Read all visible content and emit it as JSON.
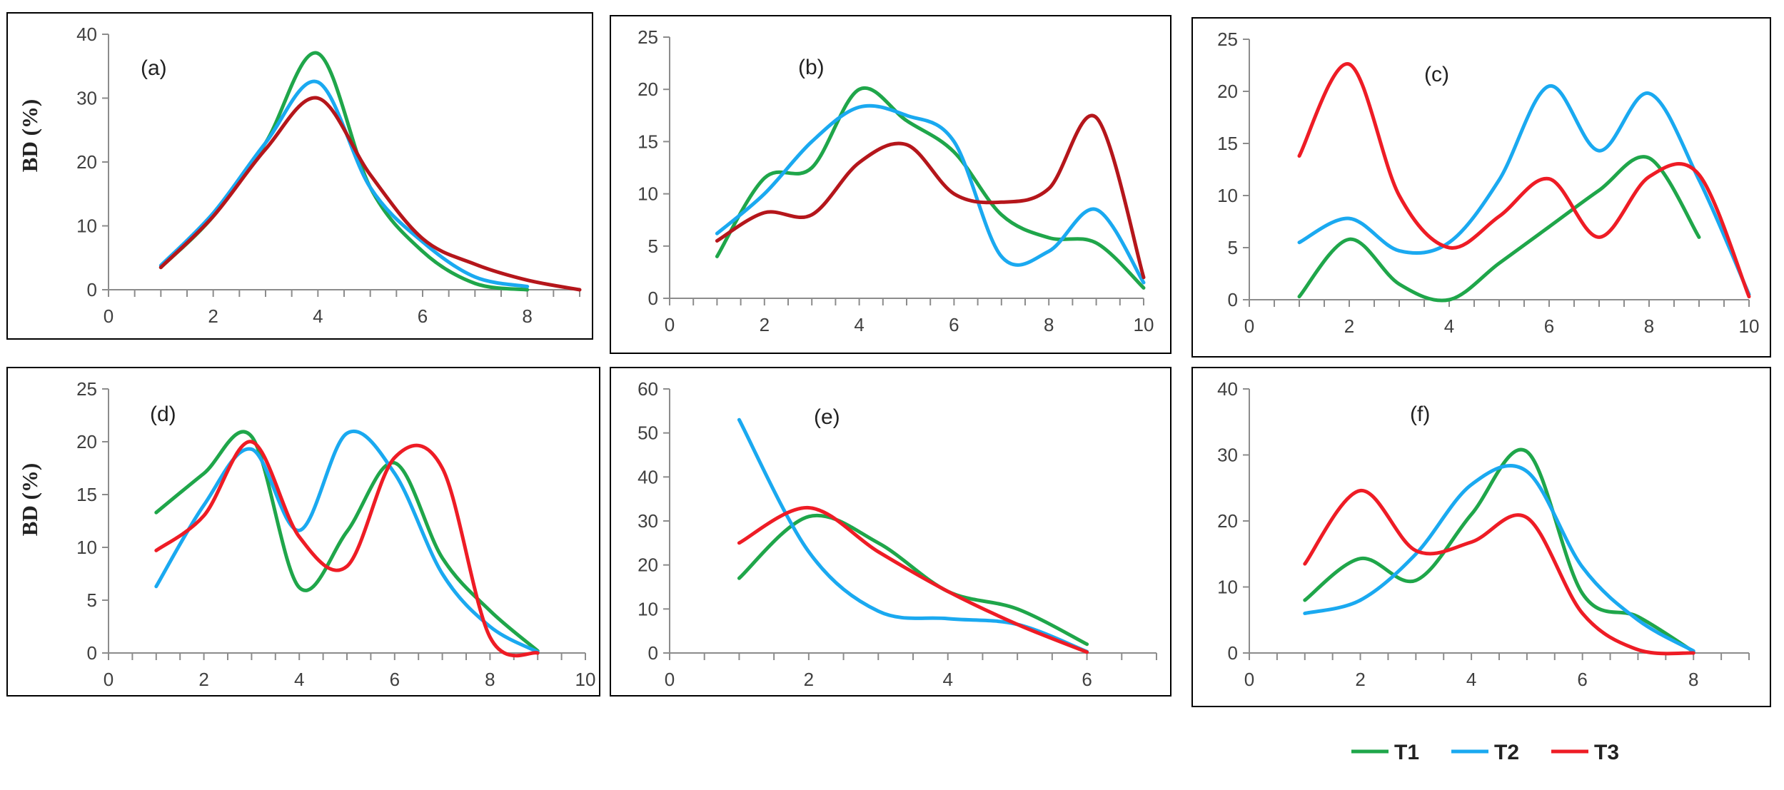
{
  "ylabel": "BD (%)",
  "legend": [
    {
      "name": "T1",
      "color": "#1fa64a"
    },
    {
      "name": "T2",
      "color": "#1aa9f0"
    },
    {
      "name": "T3",
      "color": "#ee1c25"
    }
  ],
  "chart_data": [
    {
      "type": "line",
      "label": "(a)",
      "xlim": [
        0,
        9
      ],
      "xticks": [
        0,
        2,
        4,
        6,
        8
      ],
      "ylim": [
        0,
        40
      ],
      "yticks": [
        0,
        10,
        20,
        30,
        40
      ],
      "series": [
        {
          "name": "T1",
          "color": "#1fa64a",
          "x": [
            1,
            2,
            3,
            4,
            5,
            6,
            7,
            8
          ],
          "y": [
            3.5,
            11.5,
            23,
            37,
            16,
            6,
            1,
            0
          ]
        },
        {
          "name": "T2",
          "color": "#1aa9f0",
          "x": [
            1,
            2,
            3,
            4,
            5,
            6,
            7,
            8
          ],
          "y": [
            3.8,
            12,
            23,
            32.5,
            16,
            7.5,
            2,
            0.5
          ]
        },
        {
          "name": "T3",
          "color": "#b5161b",
          "x": [
            1,
            2,
            3,
            4,
            5,
            6,
            7,
            8,
            9
          ],
          "y": [
            3.5,
            11.5,
            22,
            30,
            18,
            8,
            4,
            1.5,
            0
          ]
        }
      ]
    },
    {
      "type": "line",
      "label": "(b)",
      "xlim": [
        0,
        10
      ],
      "xticks": [
        0,
        2,
        4,
        6,
        8,
        10
      ],
      "ylim": [
        0,
        25
      ],
      "yticks": [
        0,
        5,
        10,
        15,
        20,
        25
      ],
      "series": [
        {
          "name": "T1",
          "color": "#1fa64a",
          "x": [
            1,
            2,
            3,
            4,
            5,
            6,
            7,
            8,
            9,
            10
          ],
          "y": [
            4,
            11.5,
            12.5,
            20,
            17,
            14,
            8,
            5.8,
            5.3,
            1
          ]
        },
        {
          "name": "T2",
          "color": "#1aa9f0",
          "x": [
            1,
            2,
            3,
            4,
            5,
            6,
            7,
            8,
            9,
            10
          ],
          "y": [
            6.2,
            10,
            15,
            18.3,
            17.5,
            15,
            4,
            4.5,
            8.5,
            1.5
          ]
        },
        {
          "name": "T3",
          "color": "#b5161b",
          "x": [
            1,
            2,
            3,
            4,
            5,
            6,
            7,
            8,
            9,
            10
          ],
          "y": [
            5.5,
            8.2,
            8,
            13,
            14.7,
            10,
            9.2,
            10.5,
            17.3,
            2
          ]
        }
      ]
    },
    {
      "type": "line",
      "label": "(c)",
      "xlim": [
        0,
        10
      ],
      "xticks": [
        0,
        2,
        4,
        6,
        8,
        10
      ],
      "ylim": [
        0,
        25
      ],
      "yticks": [
        0,
        5,
        10,
        15,
        20,
        25
      ],
      "series": [
        {
          "name": "T1",
          "color": "#1fa64a",
          "x": [
            1,
            2,
            3,
            4,
            5,
            6,
            7,
            8,
            9
          ],
          "y": [
            0.3,
            5.8,
            1.5,
            0,
            3.5,
            7,
            10.5,
            13.6,
            6
          ]
        },
        {
          "name": "T2",
          "color": "#1aa9f0",
          "x": [
            1,
            2,
            3,
            4,
            5,
            6,
            7,
            8,
            9,
            10
          ],
          "y": [
            5.5,
            7.8,
            4.7,
            5.5,
            11.5,
            20.5,
            14.3,
            19.8,
            11.5,
            0.5
          ]
        },
        {
          "name": "T3",
          "color": "#ee1c25",
          "x": [
            1,
            2,
            3,
            4,
            5,
            6,
            7,
            8,
            9,
            10
          ],
          "y": [
            13.8,
            22.6,
            10,
            5,
            8,
            11.6,
            6,
            11.8,
            12,
            0.3
          ]
        }
      ]
    },
    {
      "type": "line",
      "label": "(d)",
      "xlim": [
        0,
        10
      ],
      "xticks": [
        0,
        2,
        4,
        6,
        8,
        10
      ],
      "ylim": [
        0,
        25
      ],
      "yticks": [
        0,
        5,
        10,
        15,
        20,
        25
      ],
      "series": [
        {
          "name": "T1",
          "color": "#1fa64a",
          "x": [
            1,
            2,
            3,
            4,
            5,
            6,
            7,
            8,
            9
          ],
          "y": [
            13.3,
            17,
            20.5,
            6.2,
            11.5,
            18,
            9,
            4,
            0.2
          ]
        },
        {
          "name": "T2",
          "color": "#1aa9f0",
          "x": [
            1,
            2,
            3,
            4,
            5,
            6,
            7,
            8,
            9
          ],
          "y": [
            6.3,
            14,
            19.3,
            11.6,
            20.8,
            17,
            7.5,
            2.5,
            0.1
          ]
        },
        {
          "name": "T3",
          "color": "#ee1c25",
          "x": [
            1,
            2,
            3,
            4,
            5,
            6,
            7,
            8,
            9
          ],
          "y": [
            9.7,
            13,
            20,
            11,
            8.2,
            18.5,
            17.5,
            1.5,
            0
          ]
        }
      ]
    },
    {
      "type": "line",
      "label": "(e)",
      "xlim": [
        0,
        7
      ],
      "xticks": [
        0,
        2,
        4,
        6
      ],
      "ylim": [
        0,
        60
      ],
      "yticks": [
        0,
        10,
        20,
        30,
        40,
        50,
        60
      ],
      "series": [
        {
          "name": "T1",
          "color": "#1fa64a",
          "x": [
            1,
            2,
            3,
            4,
            5,
            6
          ],
          "y": [
            17,
            31,
            25,
            14,
            10,
            2
          ]
        },
        {
          "name": "T2",
          "color": "#1aa9f0",
          "x": [
            1,
            2,
            3,
            4,
            5,
            6
          ],
          "y": [
            53,
            23,
            9.5,
            7.8,
            6.5,
            0.3
          ]
        },
        {
          "name": "T3",
          "color": "#ee1c25",
          "x": [
            1,
            2,
            3,
            4,
            5,
            6
          ],
          "y": [
            25,
            33,
            23,
            14,
            6.5,
            0.2
          ]
        }
      ]
    },
    {
      "type": "line",
      "label": "(f)",
      "xlim": [
        0,
        9
      ],
      "xticks": [
        0,
        2,
        4,
        6,
        8
      ],
      "ylim": [
        0,
        40
      ],
      "yticks": [
        0,
        10,
        20,
        30,
        40
      ],
      "series": [
        {
          "name": "T1",
          "color": "#1fa64a",
          "x": [
            1,
            2,
            3,
            4,
            5,
            6,
            7,
            8
          ],
          "y": [
            8,
            14.3,
            11,
            21,
            30.5,
            9,
            5.5,
            0.2
          ]
        },
        {
          "name": "T2",
          "color": "#1aa9f0",
          "x": [
            1,
            2,
            3,
            4,
            5,
            6,
            7,
            8
          ],
          "y": [
            6,
            8,
            15,
            25.5,
            27.5,
            13,
            5,
            0.3
          ]
        },
        {
          "name": "T3",
          "color": "#ee1c25",
          "x": [
            1,
            2,
            3,
            4,
            5,
            6,
            7,
            8
          ],
          "y": [
            13.5,
            24.6,
            15.5,
            16.8,
            20.5,
            6,
            0.5,
            0
          ]
        }
      ]
    }
  ]
}
